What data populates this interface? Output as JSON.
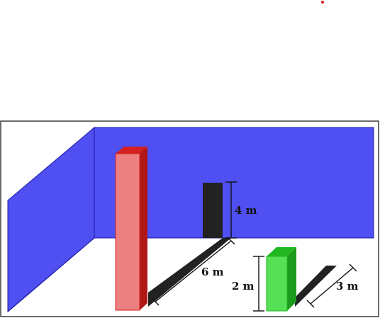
{
  "colors": {
    "background": "#ffffff",
    "frame": "#3a3a3a",
    "back_wall": "#4f4ff2",
    "side_wall": "#4f4ff2",
    "wall_edge": "#1a1aa8",
    "shadow": "#222222",
    "red_front": "#ec8080",
    "red_top": "#d42020",
    "red_side": "#b01818",
    "green_front": "#56e056",
    "green_top": "#22b822",
    "green_side": "#1c9a1c",
    "dimension": "#111111",
    "dot": "#d81c1c"
  },
  "labels": {
    "pole_shadow_height": "4 m",
    "pole_shadow_length": "6 m",
    "box_height": "2 m",
    "box_shadow_length": "3 m"
  }
}
